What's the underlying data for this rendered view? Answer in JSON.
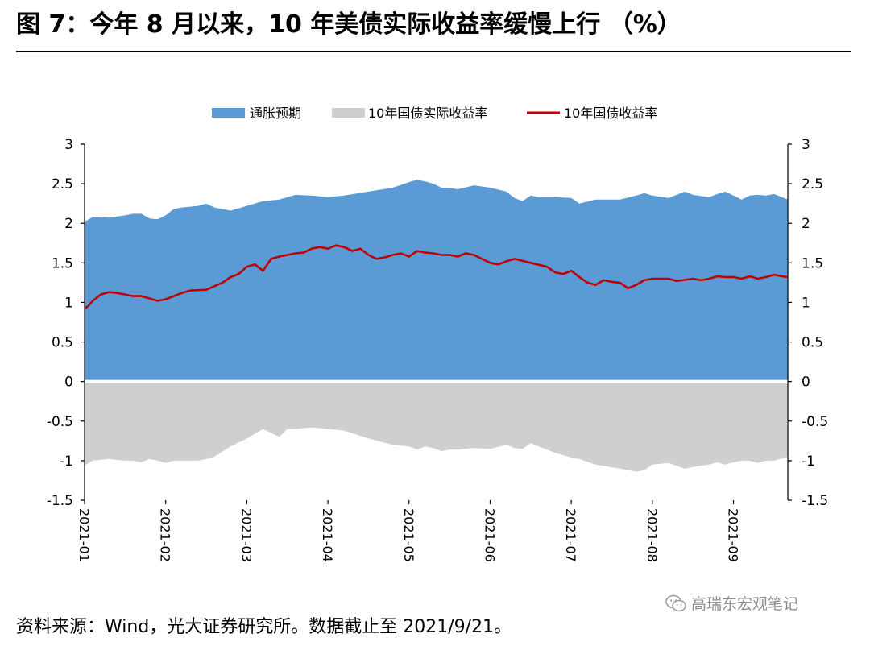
{
  "title": "图 7：今年 8 月以来，10 年美债实际收益率缓慢上行 （%）",
  "footer": "资料来源：Wind，光大证券研究所。数据截止至 2021/9/21。",
  "watermark": "高瑞东宏观笔记",
  "colors": {
    "breakeven": "#5b9bd5",
    "real_yield": "#d0cecf",
    "nominal_yield": "#c00000",
    "axis": "#000000"
  },
  "chart_data": {
    "type": "area",
    "title": "",
    "legend_position": "top",
    "ylim": [
      -1.5,
      3
    ],
    "y_ticks": [
      3,
      2.5,
      2,
      1.5,
      1,
      0.5,
      0,
      -0.5,
      -1,
      -1.5
    ],
    "y_tick_labels": [
      "3",
      "2.5",
      "2",
      "1.5",
      "1",
      "0.5",
      "0",
      "-0.5",
      "-1",
      "-1.5"
    ],
    "x_tick_labels": [
      "2021-01",
      "2021-02",
      "2021-03",
      "2021-04",
      "2021-05",
      "2021-06",
      "2021-07",
      "2021-08",
      "2021-09"
    ],
    "x_range_months": [
      0,
      8.67
    ],
    "series": [
      {
        "name": "通胀预期",
        "style": "area",
        "x": [
          0,
          0.1,
          0.3,
          0.5,
          0.6,
          0.7,
          0.8,
          0.9,
          1.0,
          1.1,
          1.2,
          1.4,
          1.5,
          1.6,
          1.8,
          2.0,
          2.2,
          2.4,
          2.5,
          2.6,
          2.8,
          3.0,
          3.2,
          3.5,
          3.8,
          4.0,
          4.1,
          4.2,
          4.3,
          4.4,
          4.5,
          4.6,
          4.8,
          5.0,
          5.2,
          5.3,
          5.4,
          5.5,
          5.6,
          5.8,
          6.0,
          6.1,
          6.3,
          6.6,
          6.8,
          6.9,
          7.0,
          7.2,
          7.4,
          7.5,
          7.7,
          7.8,
          7.9,
          8.0,
          8.1,
          8.2,
          8.3,
          8.4,
          8.5,
          8.67
        ],
        "values": [
          2.02,
          2.08,
          2.07,
          2.1,
          2.12,
          2.12,
          2.06,
          2.05,
          2.1,
          2.18,
          2.2,
          2.22,
          2.25,
          2.2,
          2.16,
          2.22,
          2.28,
          2.3,
          2.33,
          2.36,
          2.35,
          2.33,
          2.35,
          2.4,
          2.45,
          2.52,
          2.55,
          2.53,
          2.5,
          2.45,
          2.45,
          2.43,
          2.48,
          2.45,
          2.4,
          2.32,
          2.28,
          2.35,
          2.33,
          2.33,
          2.32,
          2.25,
          2.3,
          2.3,
          2.35,
          2.38,
          2.35,
          2.32,
          2.4,
          2.36,
          2.33,
          2.37,
          2.4,
          2.35,
          2.3,
          2.35,
          2.36,
          2.35,
          2.37,
          2.3
        ]
      },
      {
        "name": "10年国债实际收益率",
        "style": "area",
        "x": [
          0,
          0.1,
          0.3,
          0.5,
          0.6,
          0.7,
          0.8,
          0.9,
          1.0,
          1.1,
          1.2,
          1.4,
          1.5,
          1.6,
          1.8,
          2.0,
          2.2,
          2.4,
          2.5,
          2.6,
          2.8,
          3.0,
          3.2,
          3.5,
          3.8,
          4.0,
          4.1,
          4.2,
          4.3,
          4.4,
          4.5,
          4.6,
          4.8,
          5.0,
          5.2,
          5.3,
          5.4,
          5.5,
          5.6,
          5.8,
          6.0,
          6.1,
          6.3,
          6.6,
          6.8,
          6.9,
          7.0,
          7.2,
          7.4,
          7.5,
          7.7,
          7.8,
          7.9,
          8.0,
          8.1,
          8.2,
          8.3,
          8.4,
          8.5,
          8.67
        ],
        "values": [
          -1.06,
          -1.0,
          -0.98,
          -1.0,
          -1.0,
          -1.02,
          -0.98,
          -1.0,
          -1.03,
          -1.0,
          -1.0,
          -1.0,
          -0.98,
          -0.95,
          -0.82,
          -0.72,
          -0.6,
          -0.7,
          -0.6,
          -0.6,
          -0.58,
          -0.6,
          -0.62,
          -0.72,
          -0.8,
          -0.82,
          -0.86,
          -0.82,
          -0.84,
          -0.88,
          -0.86,
          -0.86,
          -0.84,
          -0.85,
          -0.8,
          -0.84,
          -0.85,
          -0.78,
          -0.82,
          -0.9,
          -0.96,
          -0.98,
          -1.05,
          -1.1,
          -1.14,
          -1.12,
          -1.05,
          -1.03,
          -1.1,
          -1.08,
          -1.05,
          -1.02,
          -1.05,
          -1.02,
          -1.0,
          -1.0,
          -1.03,
          -1.0,
          -1.0,
          -0.95
        ]
      },
      {
        "name": "10年国债收益率",
        "style": "line",
        "x": [
          0,
          0.05,
          0.1,
          0.2,
          0.3,
          0.4,
          0.5,
          0.6,
          0.7,
          0.8,
          0.9,
          1.0,
          1.1,
          1.2,
          1.3,
          1.5,
          1.7,
          1.8,
          1.9,
          2.0,
          2.1,
          2.2,
          2.3,
          2.4,
          2.5,
          2.6,
          2.7,
          2.8,
          2.9,
          3.0,
          3.1,
          3.2,
          3.3,
          3.4,
          3.5,
          3.6,
          3.7,
          3.8,
          3.9,
          4.0,
          4.1,
          4.2,
          4.3,
          4.4,
          4.5,
          4.6,
          4.7,
          4.8,
          5.0,
          5.1,
          5.2,
          5.3,
          5.5,
          5.7,
          5.8,
          5.9,
          6.0,
          6.1,
          6.2,
          6.3,
          6.4,
          6.5,
          6.6,
          6.7,
          6.8,
          6.9,
          7.0,
          7.1,
          7.2,
          7.3,
          7.5,
          7.6,
          7.7,
          7.8,
          7.9,
          8.0,
          8.1,
          8.2,
          8.3,
          8.4,
          8.5,
          8.6,
          8.67
        ],
        "values": [
          0.92,
          0.96,
          1.02,
          1.1,
          1.13,
          1.12,
          1.1,
          1.08,
          1.08,
          1.05,
          1.02,
          1.04,
          1.08,
          1.12,
          1.15,
          1.16,
          1.25,
          1.32,
          1.36,
          1.45,
          1.48,
          1.4,
          1.55,
          1.58,
          1.6,
          1.62,
          1.63,
          1.68,
          1.7,
          1.68,
          1.72,
          1.7,
          1.65,
          1.68,
          1.6,
          1.55,
          1.57,
          1.6,
          1.62,
          1.58,
          1.65,
          1.63,
          1.62,
          1.6,
          1.6,
          1.58,
          1.62,
          1.6,
          1.5,
          1.48,
          1.52,
          1.55,
          1.5,
          1.45,
          1.38,
          1.36,
          1.4,
          1.32,
          1.25,
          1.22,
          1.28,
          1.26,
          1.25,
          1.18,
          1.22,
          1.28,
          1.3,
          1.3,
          1.3,
          1.27,
          1.3,
          1.28,
          1.3,
          1.33,
          1.32,
          1.32,
          1.3,
          1.33,
          1.3,
          1.32,
          1.35,
          1.33,
          1.32
        ]
      }
    ]
  }
}
